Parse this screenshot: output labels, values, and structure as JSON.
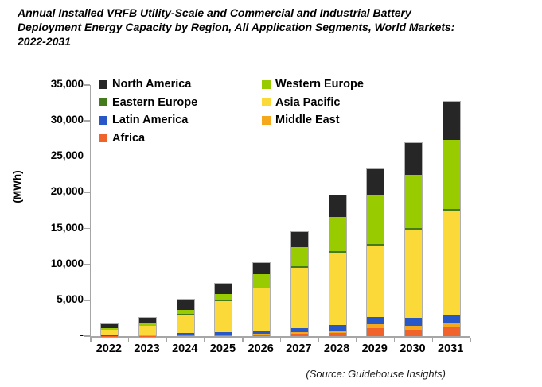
{
  "chart_data": {
    "type": "bar",
    "stacked": true,
    "title": "Annual Installed VRFB Utility-Scale and Commercial and Industrial Battery\nDeployment Energy Capacity by Region, All Application Segments, World Markets:\n2022-2031",
    "ylabel": "(MWh)",
    "source": "(Source: Guidehouse Insights)",
    "categories": [
      "2022",
      "2023",
      "2024",
      "2025",
      "2026",
      "2027",
      "2028",
      "2029",
      "2030",
      "2031"
    ],
    "ylim": [
      0,
      35000
    ],
    "grid": false,
    "legend_position": "top-left, two columns",
    "y_ticks": [
      {
        "value": 0,
        "label": "-"
      },
      {
        "value": 5000,
        "label": "5,000"
      },
      {
        "value": 10000,
        "label": "10,000"
      },
      {
        "value": 15000,
        "label": "15,000"
      },
      {
        "value": 20000,
        "label": "20,000"
      },
      {
        "value": 25000,
        "label": "25,000"
      },
      {
        "value": 30000,
        "label": "30,000"
      },
      {
        "value": 35000,
        "label": "35,000"
      }
    ],
    "stack_order_note": "series listed bottom-to-top of stack",
    "series": [
      {
        "name": "Africa",
        "color": "#F0642C",
        "values": [
          20,
          40,
          140,
          170,
          230,
          290,
          400,
          1100,
          930,
          1180
        ]
      },
      {
        "name": "Middle East",
        "color": "#F5A81C",
        "values": [
          10,
          20,
          40,
          60,
          110,
          280,
          300,
          560,
          480,
          600
        ]
      },
      {
        "name": "Latin America",
        "color": "#2857C8",
        "values": [
          30,
          120,
          240,
          300,
          470,
          550,
          870,
          1000,
          1180,
          1260
        ]
      },
      {
        "name": "Asia Pacific",
        "color": "#FBD939",
        "values": [
          800,
          1250,
          2600,
          4300,
          5800,
          8400,
          10050,
          10000,
          12250,
          14450
        ]
      },
      {
        "name": "Eastern Europe",
        "color": "#447C1D",
        "values": [
          30,
          40,
          80,
          120,
          180,
          220,
          220,
          220,
          220,
          220
        ]
      },
      {
        "name": "Western Europe",
        "color": "#99CC00",
        "values": [
          230,
          280,
          600,
          920,
          1850,
          2700,
          4800,
          6700,
          7450,
          9600
        ]
      },
      {
        "name": "North America",
        "color": "#262626",
        "values": [
          560,
          750,
          1450,
          1400,
          1550,
          2100,
          3000,
          3700,
          4450,
          5380
        ]
      }
    ],
    "legend_order": [
      "North America",
      "Western Europe",
      "Eastern Europe",
      "Asia Pacific",
      "Latin America",
      "Middle East",
      "Africa"
    ]
  }
}
